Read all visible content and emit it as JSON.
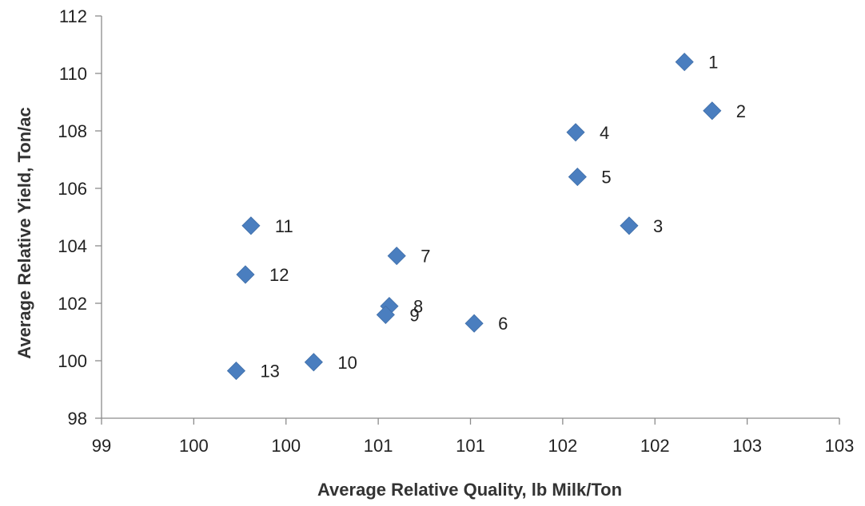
{
  "chart_data": {
    "type": "scatter",
    "title": "",
    "xlabel": "Average Relative Quality, lb Milk/Ton",
    "ylabel": "Average Relative Yield, Ton/ac",
    "xlim": [
      99,
      103
    ],
    "ylim": [
      98,
      112
    ],
    "x_ticks": [
      "99",
      "100",
      "100",
      "101",
      "101",
      "102",
      "102",
      "103",
      "103"
    ],
    "y_ticks": [
      "98",
      "100",
      "102",
      "104",
      "106",
      "108",
      "110",
      "112"
    ],
    "grid": false,
    "legend": "none",
    "marker": "diamond",
    "marker_color": "#4a7ebf",
    "points": [
      {
        "label": "1",
        "x": 102.16,
        "y": 110.4
      },
      {
        "label": "2",
        "x": 102.31,
        "y": 108.7
      },
      {
        "label": "3",
        "x": 101.86,
        "y": 104.7
      },
      {
        "label": "4",
        "x": 101.57,
        "y": 107.95
      },
      {
        "label": "5",
        "x": 101.58,
        "y": 106.4
      },
      {
        "label": "6",
        "x": 101.02,
        "y": 101.3
      },
      {
        "label": "7",
        "x": 100.6,
        "y": 103.65
      },
      {
        "label": "8",
        "x": 100.56,
        "y": 101.9
      },
      {
        "label": "9",
        "x": 100.54,
        "y": 101.6
      },
      {
        "label": "10",
        "x": 100.15,
        "y": 99.95
      },
      {
        "label": "11",
        "x": 99.81,
        "y": 104.7
      },
      {
        "label": "12",
        "x": 99.78,
        "y": 103.0
      },
      {
        "label": "13",
        "x": 99.73,
        "y": 99.65
      }
    ]
  }
}
